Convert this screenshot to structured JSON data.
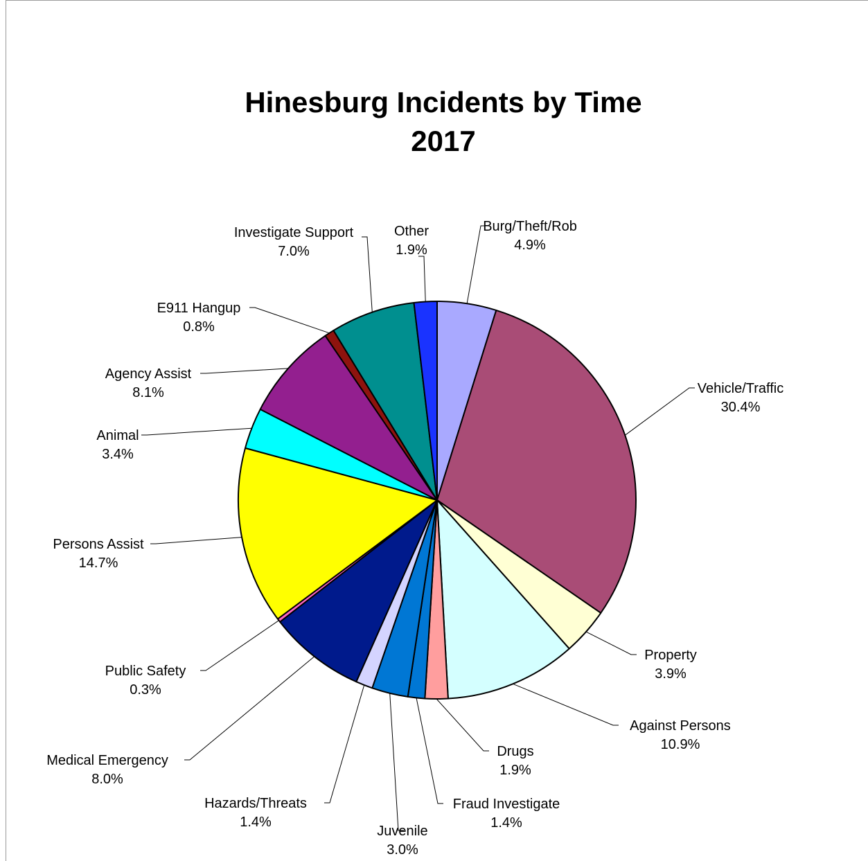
{
  "chart_data": {
    "type": "pie",
    "title": "Hinesburg Incidents by Time",
    "subtitle": "2017",
    "slices": [
      {
        "name": "Burg/Theft/Rob",
        "value": 4.9,
        "label": "4.9%",
        "color": "#A9A9FF"
      },
      {
        "name": "Vehicle/Traffic",
        "value": 30.4,
        "label": "30.4%",
        "color": "#A94C76"
      },
      {
        "name": "Property",
        "value": 3.9,
        "label": "3.9%",
        "color": "#FFFFD4"
      },
      {
        "name": "Against Persons",
        "value": 10.9,
        "label": "10.9%",
        "color": "#D4FFFF"
      },
      {
        "name": "Drugs",
        "value": 1.9,
        "label": "1.9%",
        "color": "#FF9E9E"
      },
      {
        "name": "Fraud Investigate",
        "value": 1.4,
        "label": "1.4%",
        "color": "#0077D4"
      },
      {
        "name": "Juvenile",
        "value": 3.0,
        "label": "3.0%",
        "color": "#0077D4"
      },
      {
        "name": "Hazards/Threats",
        "value": 1.4,
        "label": "1.4%",
        "color": "#D4D4FF"
      },
      {
        "name": "Medical Emergency",
        "value": 8.0,
        "label": "8.0%",
        "color": "#001A8C"
      },
      {
        "name": "Public Safety",
        "value": 0.3,
        "label": "0.3%",
        "color": "#FF66C4"
      },
      {
        "name": "Persons Assist",
        "value": 14.7,
        "label": "14.7%",
        "color": "#FFFF00"
      },
      {
        "name": "Animal",
        "value": 3.4,
        "label": "3.4%",
        "color": "#00FFFF"
      },
      {
        "name": "Agency Assist",
        "value": 8.1,
        "label": "8.1%",
        "color": "#931F8F"
      },
      {
        "name": "E911 Hangup",
        "value": 0.8,
        "label": "0.8%",
        "color": "#8E130E"
      },
      {
        "name": "Investigate Support",
        "value": 7.0,
        "label": "7.0%",
        "color": "#008F8F"
      },
      {
        "name": "Other",
        "value": 1.9,
        "label": "1.9%",
        "color": "#1A33FF"
      }
    ]
  }
}
